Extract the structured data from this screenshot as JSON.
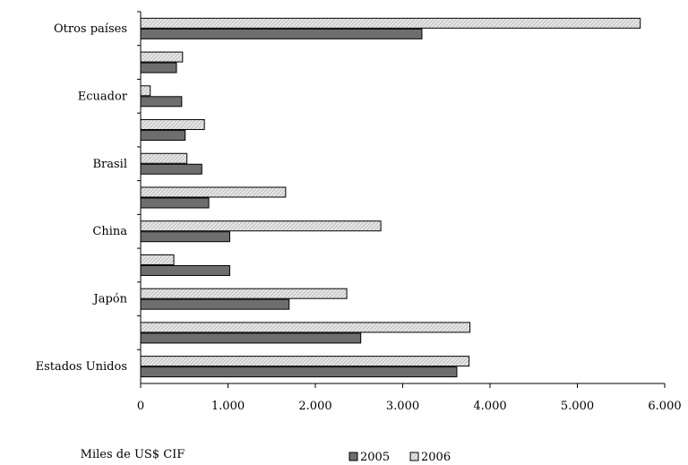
{
  "chart_data": {
    "type": "bar",
    "orientation": "horizontal",
    "title": "",
    "xlabel": "Miles de US$ CIF",
    "ylabel": "",
    "xlim": [
      0,
      6000
    ],
    "x_ticks": [
      0,
      1000,
      2000,
      3000,
      4000,
      5000,
      6000
    ],
    "x_tick_labels": [
      "0",
      "1.000",
      "2.000",
      "3.000",
      "4.000",
      "5.000",
      "6.000"
    ],
    "grid": false,
    "legend_position": "bottom",
    "categories_top_to_bottom": [
      "Otros países",
      "",
      "Ecuador",
      "",
      "Brasil",
      "",
      "China",
      "",
      "Japón",
      "",
      "Estados Unidos"
    ],
    "series": [
      {
        "name": "2006",
        "color": "#d3d3d3",
        "pattern": "hatched",
        "values": [
          5720,
          480,
          110,
          730,
          530,
          1660,
          2750,
          380,
          2360,
          3770,
          3760
        ]
      },
      {
        "name": "2005",
        "color": "#6e6e6e",
        "pattern": "solid",
        "values": [
          3220,
          410,
          470,
          510,
          700,
          780,
          1020,
          1020,
          1700,
          2520,
          3620
        ]
      }
    ]
  }
}
